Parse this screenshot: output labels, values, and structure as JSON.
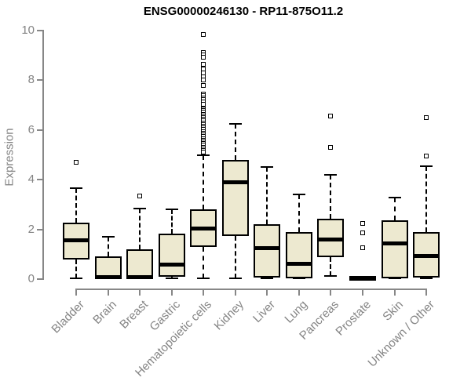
{
  "chart_data": {
    "type": "boxplot",
    "title": "ENSG00000246130 - RP11-875O11.2",
    "ylabel": "Expression",
    "xlabel": "",
    "ylim": [
      0,
      10
    ],
    "yticks": [
      0,
      2,
      4,
      6,
      8,
      10
    ],
    "grid": false,
    "legend": "none",
    "box_fill_color": "#ede9d0",
    "box_border_color": "#000000",
    "axis_color": "#878787",
    "label_color": "#848484",
    "categories": [
      "Bladder",
      "Brain",
      "Breast",
      "Gastric",
      "Hematopoietic cells",
      "Kidney",
      "Liver",
      "Lung",
      "Pancreas",
      "Prostate",
      "Skin",
      "Unknown / Other"
    ],
    "series": [
      {
        "category": "Bladder",
        "low": 0.02,
        "q1": 0.78,
        "median": 1.55,
        "q3": 2.27,
        "high": 3.65,
        "outliers": [
          4.7
        ]
      },
      {
        "category": "Brain",
        "low": 0.02,
        "q1": 0.02,
        "median": 0.08,
        "q3": 0.9,
        "high": 1.7,
        "outliers": []
      },
      {
        "category": "Breast",
        "low": 0.02,
        "q1": 0.02,
        "median": 0.08,
        "q3": 1.2,
        "high": 2.85,
        "outliers": [
          3.33
        ]
      },
      {
        "category": "Gastric",
        "low": 0.02,
        "q1": 0.1,
        "median": 0.57,
        "q3": 1.84,
        "high": 2.8,
        "outliers": []
      },
      {
        "category": "Hematopoietic cells",
        "low": 0.02,
        "q1": 1.3,
        "median": 2.05,
        "q3": 2.82,
        "high": 5.0,
        "outliers": [
          9.85,
          9.12,
          9.02,
          8.92,
          8.65,
          8.45,
          8.3,
          8.15,
          8.0,
          7.8,
          7.45,
          7.37,
          7.29,
          7.21,
          7.13,
          7.05,
          6.85,
          6.78,
          6.71,
          6.64,
          6.57,
          6.5,
          6.43,
          6.36,
          6.29,
          6.22,
          6.15,
          6.08,
          6.01,
          5.94,
          5.87,
          5.8,
          5.73,
          5.66,
          5.59,
          5.52,
          5.45,
          5.38,
          5.31,
          5.24,
          5.17,
          5.1
        ]
      },
      {
        "category": "Kidney",
        "low": 0.02,
        "q1": 1.72,
        "median": 3.9,
        "q3": 4.8,
        "high": 6.25,
        "outliers": []
      },
      {
        "category": "Liver",
        "low": 0.02,
        "q1": 0.05,
        "median": 1.25,
        "q3": 2.2,
        "high": 4.5,
        "outliers": []
      },
      {
        "category": "Lung",
        "low": 0.02,
        "q1": 0.03,
        "median": 0.6,
        "q3": 1.9,
        "high": 3.42,
        "outliers": []
      },
      {
        "category": "Pancreas",
        "low": 0.12,
        "q1": 0.88,
        "median": 1.6,
        "q3": 2.42,
        "high": 4.2,
        "outliers": [
          6.55,
          5.3
        ]
      },
      {
        "category": "Prostate",
        "low": 0.01,
        "q1": 0.02,
        "median": 0.04,
        "q3": 0.07,
        "high": 0.08,
        "outliers": [
          2.25,
          1.87,
          1.25
        ]
      },
      {
        "category": "Skin",
        "low": 0.02,
        "q1": 0.04,
        "median": 1.45,
        "q3": 2.37,
        "high": 3.27,
        "outliers": []
      },
      {
        "category": "Unknown / Other",
        "low": 0.02,
        "q1": 0.05,
        "median": 0.92,
        "q3": 1.9,
        "high": 4.55,
        "outliers": [
          6.5,
          4.95
        ]
      }
    ]
  }
}
